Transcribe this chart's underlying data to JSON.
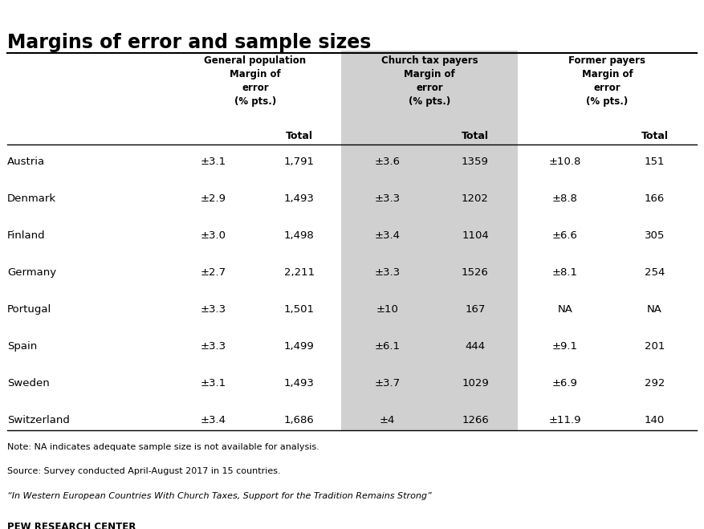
{
  "title": "Margins of error and sample sizes",
  "countries": [
    "Austria",
    "Denmark",
    "Finland",
    "Germany",
    "Portugal",
    "Spain",
    "Sweden",
    "Switzerland"
  ],
  "gen_pop_moe": [
    "±3.1",
    "±2.9",
    "±3.0",
    "±2.7",
    "±3.3",
    "±3.3",
    "±3.1",
    "±3.4"
  ],
  "gen_pop_total": [
    "1,791",
    "1,493",
    "1,498",
    "2,211",
    "1,501",
    "1,499",
    "1,493",
    "1,686"
  ],
  "church_moe": [
    "±3.6",
    "±3.3",
    "±3.4",
    "±3.3",
    "±10",
    "±6.1",
    "±3.7",
    "±4"
  ],
  "church_total": [
    "1359",
    "1202",
    "1104",
    "1526",
    "167",
    "444",
    "1029",
    "1266"
  ],
  "former_moe": [
    "±10.8",
    "±8.8",
    "±6.6",
    "±8.1",
    "NA",
    "±9.1",
    "±6.9",
    "±11.9"
  ],
  "former_total": [
    "151",
    "166",
    "305",
    "254",
    "NA",
    "201",
    "292",
    "140"
  ],
  "note1": "Note: NA indicates adequate sample size is not available for analysis.",
  "note2": "Source: Survey conducted April-August 2017 in 15 countries.",
  "note3": "“In Western European Countries With Church Taxes, Support for the Tradition Remains Strong”",
  "footer": "PEW RESEARCH CENTER",
  "highlight_color": "#d0d0d0",
  "bg_color": "#ffffff"
}
